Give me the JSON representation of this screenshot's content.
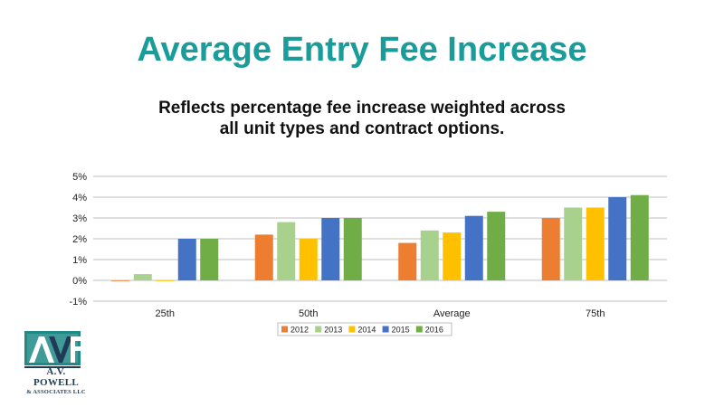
{
  "slide": {
    "title": "Average Entry Fee Increase",
    "subtitle_line1": "Reflects percentage fee increase weighted across",
    "subtitle_line2": "all unit types and contract options."
  },
  "logo": {
    "name": "A.V. POWELL",
    "sub": "& ASSOCIATES LLC",
    "mark_text": "AVP",
    "colors": {
      "teal": "#1f8a86",
      "navy": "#1f3b57"
    }
  },
  "chart_data": {
    "type": "bar",
    "categories": [
      "25th",
      "50th",
      "Average",
      "75th"
    ],
    "series": [
      {
        "name": "2012",
        "color": "#ed7d31",
        "values": [
          0.0,
          2.2,
          1.8,
          3.0
        ]
      },
      {
        "name": "2013",
        "color": "#a9d18e",
        "values": [
          0.3,
          2.8,
          2.4,
          3.5
        ]
      },
      {
        "name": "2014",
        "color": "#ffc000",
        "values": [
          0.0,
          2.0,
          2.3,
          3.5
        ]
      },
      {
        "name": "2015",
        "color": "#4472c4",
        "values": [
          2.0,
          3.0,
          3.1,
          4.0
        ]
      },
      {
        "name": "2016",
        "color": "#70ad47",
        "values": [
          2.0,
          3.0,
          3.3,
          4.1
        ]
      }
    ],
    "ylim": [
      -1,
      5
    ],
    "yticks": [
      "-1%",
      "0%",
      "1%",
      "2%",
      "3%",
      "4%",
      "5%"
    ],
    "grid": true,
    "legend_position": "bottom",
    "xlabel": "",
    "ylabel": ""
  }
}
